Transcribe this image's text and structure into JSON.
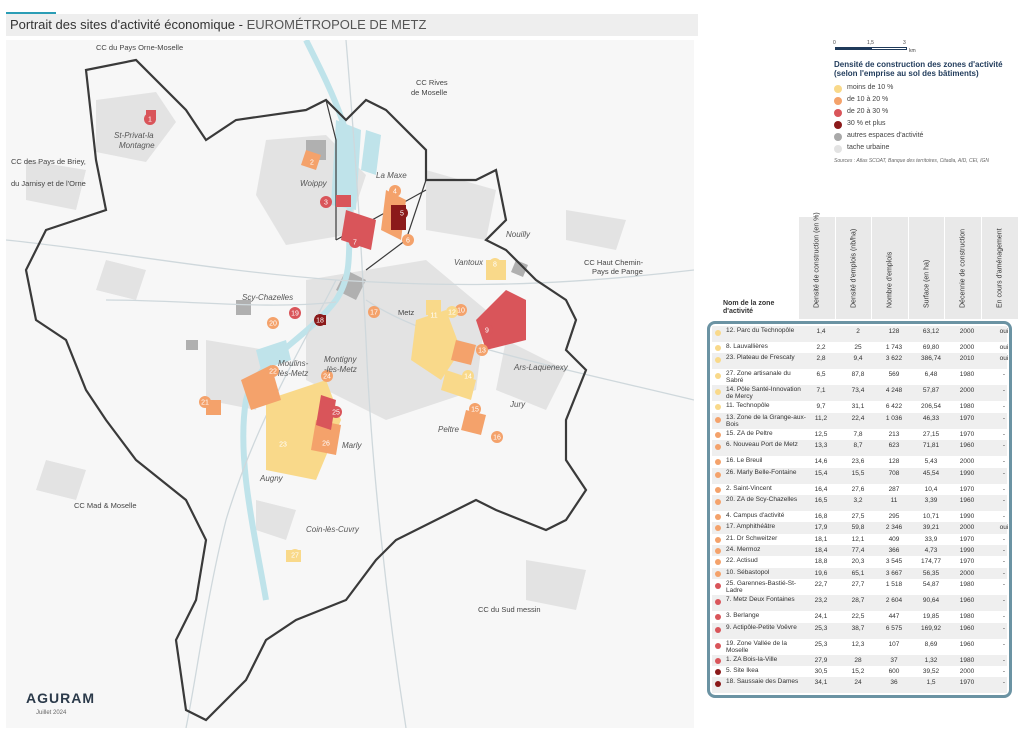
{
  "header": {
    "title": "Portrait des sites d'activité économique - ",
    "subtitle": "EUROMÉTROPOLE DE METZ"
  },
  "colors": {
    "accent": "#2a9db5",
    "level1": "#f9d98a",
    "level2": "#f4a26b",
    "level3": "#d9555a",
    "level4": "#8b1a1a",
    "other_activity": "#a9a9a9",
    "urban": "#e3e3e3",
    "water": "#bfe3ea",
    "table_border": "#6b93a3"
  },
  "map": {
    "place_labels": {
      "cc_pays_orne": "CC du Pays Orne-Moselle",
      "cc_rives": "CC Rives",
      "cc_rives2": "de Moselle",
      "cc_briey1": "CC des Pays de Briey,",
      "cc_briey2": "du Jarnisy et de l'Orne",
      "cc_chemin1": "CC Haut Chemin-",
      "cc_chemin2": "Pays de Pange",
      "cc_mad": "CC Mad & Moselle",
      "cc_sud": "CC du Sud messin",
      "st_privat1": "St-Privat-la",
      "st_privat2": "Montagne",
      "woippy": "Woippy",
      "la_maxe": "La Maxe",
      "nouilly": "Nouilly",
      "vantoux": "Vantoux",
      "scy": "Scy-Chazelles",
      "metz": "Metz",
      "moulins1": "Moulins-",
      "moulins2": "lès-Metz",
      "montigny1": "Montigny",
      "montigny2": "-lès-Metz",
      "ars": "Ars-Laquenexy",
      "jury": "Jury",
      "marly": "Marly",
      "peltre": "Peltre",
      "augny": "Augny",
      "coin": "Coin-lès-Cuvry"
    },
    "badges": [
      "1",
      "2",
      "3",
      "4",
      "5",
      "6",
      "7",
      "8",
      "9",
      "10",
      "11",
      "12",
      "13",
      "14",
      "15",
      "16",
      "17",
      "18",
      "19",
      "20",
      "21",
      "22",
      "23",
      "24",
      "25",
      "26",
      "27"
    ]
  },
  "logo": {
    "word": "AGURAM",
    "date": "Juillet 2024"
  },
  "scale": {
    "t0": "0",
    "t1": "1,5",
    "t2": "3",
    "unit": "km"
  },
  "legend": {
    "title": "Densité de construction des zones d'activité (selon l'emprise au sol des bâtiments)",
    "items": [
      {
        "label": "moins de 10 %",
        "color": "#f9d98a"
      },
      {
        "label": "de 10 à 20 %",
        "color": "#f4a26b"
      },
      {
        "label": "de 20 à 30 %",
        "color": "#d9555a"
      },
      {
        "label": "30 % et plus",
        "color": "#8b1a1a"
      },
      {
        "label": "autres espaces d'activité",
        "color": "#a9a9a9"
      },
      {
        "label": "tache urbaine",
        "color": "#e3e3e3"
      }
    ],
    "sources": "Sources : Atlas SCOAT, Banque des territoires, Citadia, AID, CEI, IGN"
  },
  "table": {
    "name_header": "Nom de la zone d'activité",
    "columns": [
      "Densité de construction (en %)",
      "Densité d'emplois (nb/ha)",
      "Nombre d'emplois",
      "Surface (en ha)",
      "Décennie de construction",
      "En cours d'aménagement"
    ],
    "rows": [
      {
        "name": "12. Parc du Technopôle",
        "color": "#f9d98a",
        "tall": true,
        "v": [
          "1,4",
          "2",
          "128",
          "63,12",
          "2000",
          "oui"
        ]
      },
      {
        "name": "8. Lauvallières",
        "color": "#f9d98a",
        "tall": false,
        "v": [
          "2,2",
          "25",
          "1 743",
          "69,80",
          "2000",
          "oui"
        ]
      },
      {
        "name": "23. Plateau de Frescaty",
        "color": "#f9d98a",
        "tall": true,
        "v": [
          "2,8",
          "9,4",
          "3 622",
          "386,74",
          "2010",
          "oui"
        ]
      },
      {
        "name": "27. Zone artisanale du Sabré",
        "color": "#f9d98a",
        "tall": true,
        "v": [
          "6,5",
          "87,8",
          "569",
          "6,48",
          "1980",
          "-"
        ]
      },
      {
        "name": "14. Pôle Santé-Innovation de Mercy",
        "color": "#f9d98a",
        "tall": true,
        "v": [
          "7,1",
          "73,4",
          "4 248",
          "57,87",
          "2000",
          "-"
        ]
      },
      {
        "name": "11. Technopôle",
        "color": "#f9d98a",
        "tall": false,
        "v": [
          "9,7",
          "31,1",
          "6 422",
          "206,54",
          "1980",
          "-"
        ]
      },
      {
        "name": "13. Zone de la Grange-aux-Bois",
        "color": "#f4a26b",
        "tall": true,
        "v": [
          "11,2",
          "22,4",
          "1 036",
          "46,33",
          "1970",
          "-"
        ]
      },
      {
        "name": "15. ZA de Peltre",
        "color": "#f4a26b",
        "tall": false,
        "v": [
          "12,5",
          "7,8",
          "213",
          "27,15",
          "1970",
          "-"
        ]
      },
      {
        "name": "6. Nouveau Port de Metz",
        "color": "#f4a26b",
        "tall": true,
        "v": [
          "13,3",
          "8,7",
          "623",
          "71,81",
          "1960",
          "-"
        ]
      },
      {
        "name": "16. Le Breuil",
        "color": "#f4a26b",
        "tall": false,
        "v": [
          "14,6",
          "23,6",
          "128",
          "5,43",
          "2000",
          "-"
        ]
      },
      {
        "name": "26. Marly Belle-Fontaine",
        "color": "#f4a26b",
        "tall": true,
        "v": [
          "15,4",
          "15,5",
          "708",
          "45,54",
          "1990",
          "-"
        ]
      },
      {
        "name": "2. Saint-Vincent",
        "color": "#f4a26b",
        "tall": false,
        "v": [
          "16,4",
          "27,6",
          "287",
          "10,4",
          "1970",
          "-"
        ]
      },
      {
        "name": "20. ZA de Scy-Chazelles",
        "color": "#f4a26b",
        "tall": true,
        "v": [
          "16,5",
          "3,2",
          "11",
          "3,39",
          "1960",
          "-"
        ]
      },
      {
        "name": "4. Campus d'activité",
        "color": "#f4a26b",
        "tall": false,
        "v": [
          "16,8",
          "27,5",
          "295",
          "10,71",
          "1990",
          "-"
        ]
      },
      {
        "name": "17. Amphithéâtre",
        "color": "#f4a26b",
        "tall": false,
        "v": [
          "17,9",
          "59,8",
          "2 346",
          "39,21",
          "2000",
          "oui"
        ]
      },
      {
        "name": "21. Dr Schweitzer",
        "color": "#f4a26b",
        "tall": false,
        "v": [
          "18,1",
          "12,1",
          "409",
          "33,9",
          "1970",
          "-"
        ]
      },
      {
        "name": "24. Mermoz",
        "color": "#f4a26b",
        "tall": false,
        "v": [
          "18,4",
          "77,4",
          "366",
          "4,73",
          "1990",
          "-"
        ]
      },
      {
        "name": "22. Actisud",
        "color": "#f4a26b",
        "tall": false,
        "v": [
          "18,8",
          "20,3",
          "3 545",
          "174,77",
          "1970",
          "-"
        ]
      },
      {
        "name": "10. Sébastopol",
        "color": "#f4a26b",
        "tall": false,
        "v": [
          "19,6",
          "65,1",
          "3 667",
          "56,35",
          "2000",
          "-"
        ]
      },
      {
        "name": "25. Garennes-Bastié-St-Ladre",
        "color": "#d9555a",
        "tall": true,
        "v": [
          "22,7",
          "27,7",
          "1 518",
          "54,87",
          "1980",
          "-"
        ]
      },
      {
        "name": "7. Metz Deux Fontaines",
        "color": "#d9555a",
        "tall": true,
        "v": [
          "23,2",
          "28,7",
          "2 604",
          "90,64",
          "1960",
          "-"
        ]
      },
      {
        "name": "3. Berlange",
        "color": "#d9555a",
        "tall": false,
        "v": [
          "24,1",
          "22,5",
          "447",
          "19,85",
          "1980",
          "-"
        ]
      },
      {
        "name": "9. Actipôle-Petite Voëvre",
        "color": "#d9555a",
        "tall": true,
        "v": [
          "25,3",
          "38,7",
          "6 575",
          "169,92",
          "1960",
          "-"
        ]
      },
      {
        "name": "19. Zone Vallée de la Moselle",
        "color": "#d9555a",
        "tall": true,
        "v": [
          "25,3",
          "12,3",
          "107",
          "8,69",
          "1960",
          "-"
        ]
      },
      {
        "name": "1. ZA Bois-la-Ville",
        "color": "#d9555a",
        "tall": false,
        "v": [
          "27,9",
          "28",
          "37",
          "1,32",
          "1980",
          "-"
        ]
      },
      {
        "name": "5. Site Ikea",
        "color": "#8b1a1a",
        "tall": false,
        "v": [
          "30,5",
          "15,2",
          "600",
          "39,52",
          "2000",
          "-"
        ]
      },
      {
        "name": "18. Saussaie des Dames",
        "color": "#8b1a1a",
        "tall": true,
        "v": [
          "34,1",
          "24",
          "36",
          "1,5",
          "1970",
          "-"
        ]
      }
    ]
  }
}
